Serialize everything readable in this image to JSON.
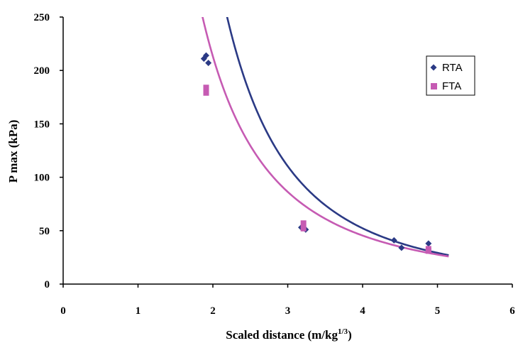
{
  "chart_data": {
    "type": "scatter",
    "title": "",
    "xlabel": "Scaled distance (m/kg",
    "xlabel_sup": "1/3",
    "xlabel_end": ")",
    "ylabel": "P max (kPa)",
    "xlim": [
      0,
      6
    ],
    "ylim": [
      0,
      250
    ],
    "x_ticks": [
      "0",
      "1",
      "2",
      "3",
      "4",
      "5",
      "6"
    ],
    "y_ticks": [
      "0",
      "50",
      "100",
      "150",
      "200",
      "250"
    ],
    "grid": false,
    "legend_position": "top-right",
    "series": [
      {
        "name": "RTA",
        "marker": "diamond",
        "color": "#2b3a85",
        "points": [
          [
            1.88,
            211
          ],
          [
            1.91,
            214
          ],
          [
            1.94,
            207
          ],
          [
            3.18,
            53
          ],
          [
            3.24,
            51
          ],
          [
            4.42,
            41
          ],
          [
            4.52,
            34
          ],
          [
            4.88,
            38
          ]
        ]
      },
      {
        "name": "FTA",
        "marker": "square",
        "color": "#c65bb3",
        "points": [
          [
            1.91,
            184
          ],
          [
            1.91,
            179
          ],
          [
            3.21,
            57
          ],
          [
            3.21,
            52
          ],
          [
            4.88,
            33
          ],
          [
            4.88,
            31
          ]
        ]
      }
    ],
    "fits": [
      {
        "series": "RTA",
        "type": "power",
        "a": 1920,
        "b": -2.6,
        "x_range": [
          1.7,
          5.15
        ],
        "color": "#2b3a85"
      },
      {
        "series": "FTA",
        "type": "power",
        "a": 1000,
        "b": -2.23,
        "x_range": [
          1.66,
          5.15
        ],
        "color": "#c65bb3"
      }
    ]
  }
}
